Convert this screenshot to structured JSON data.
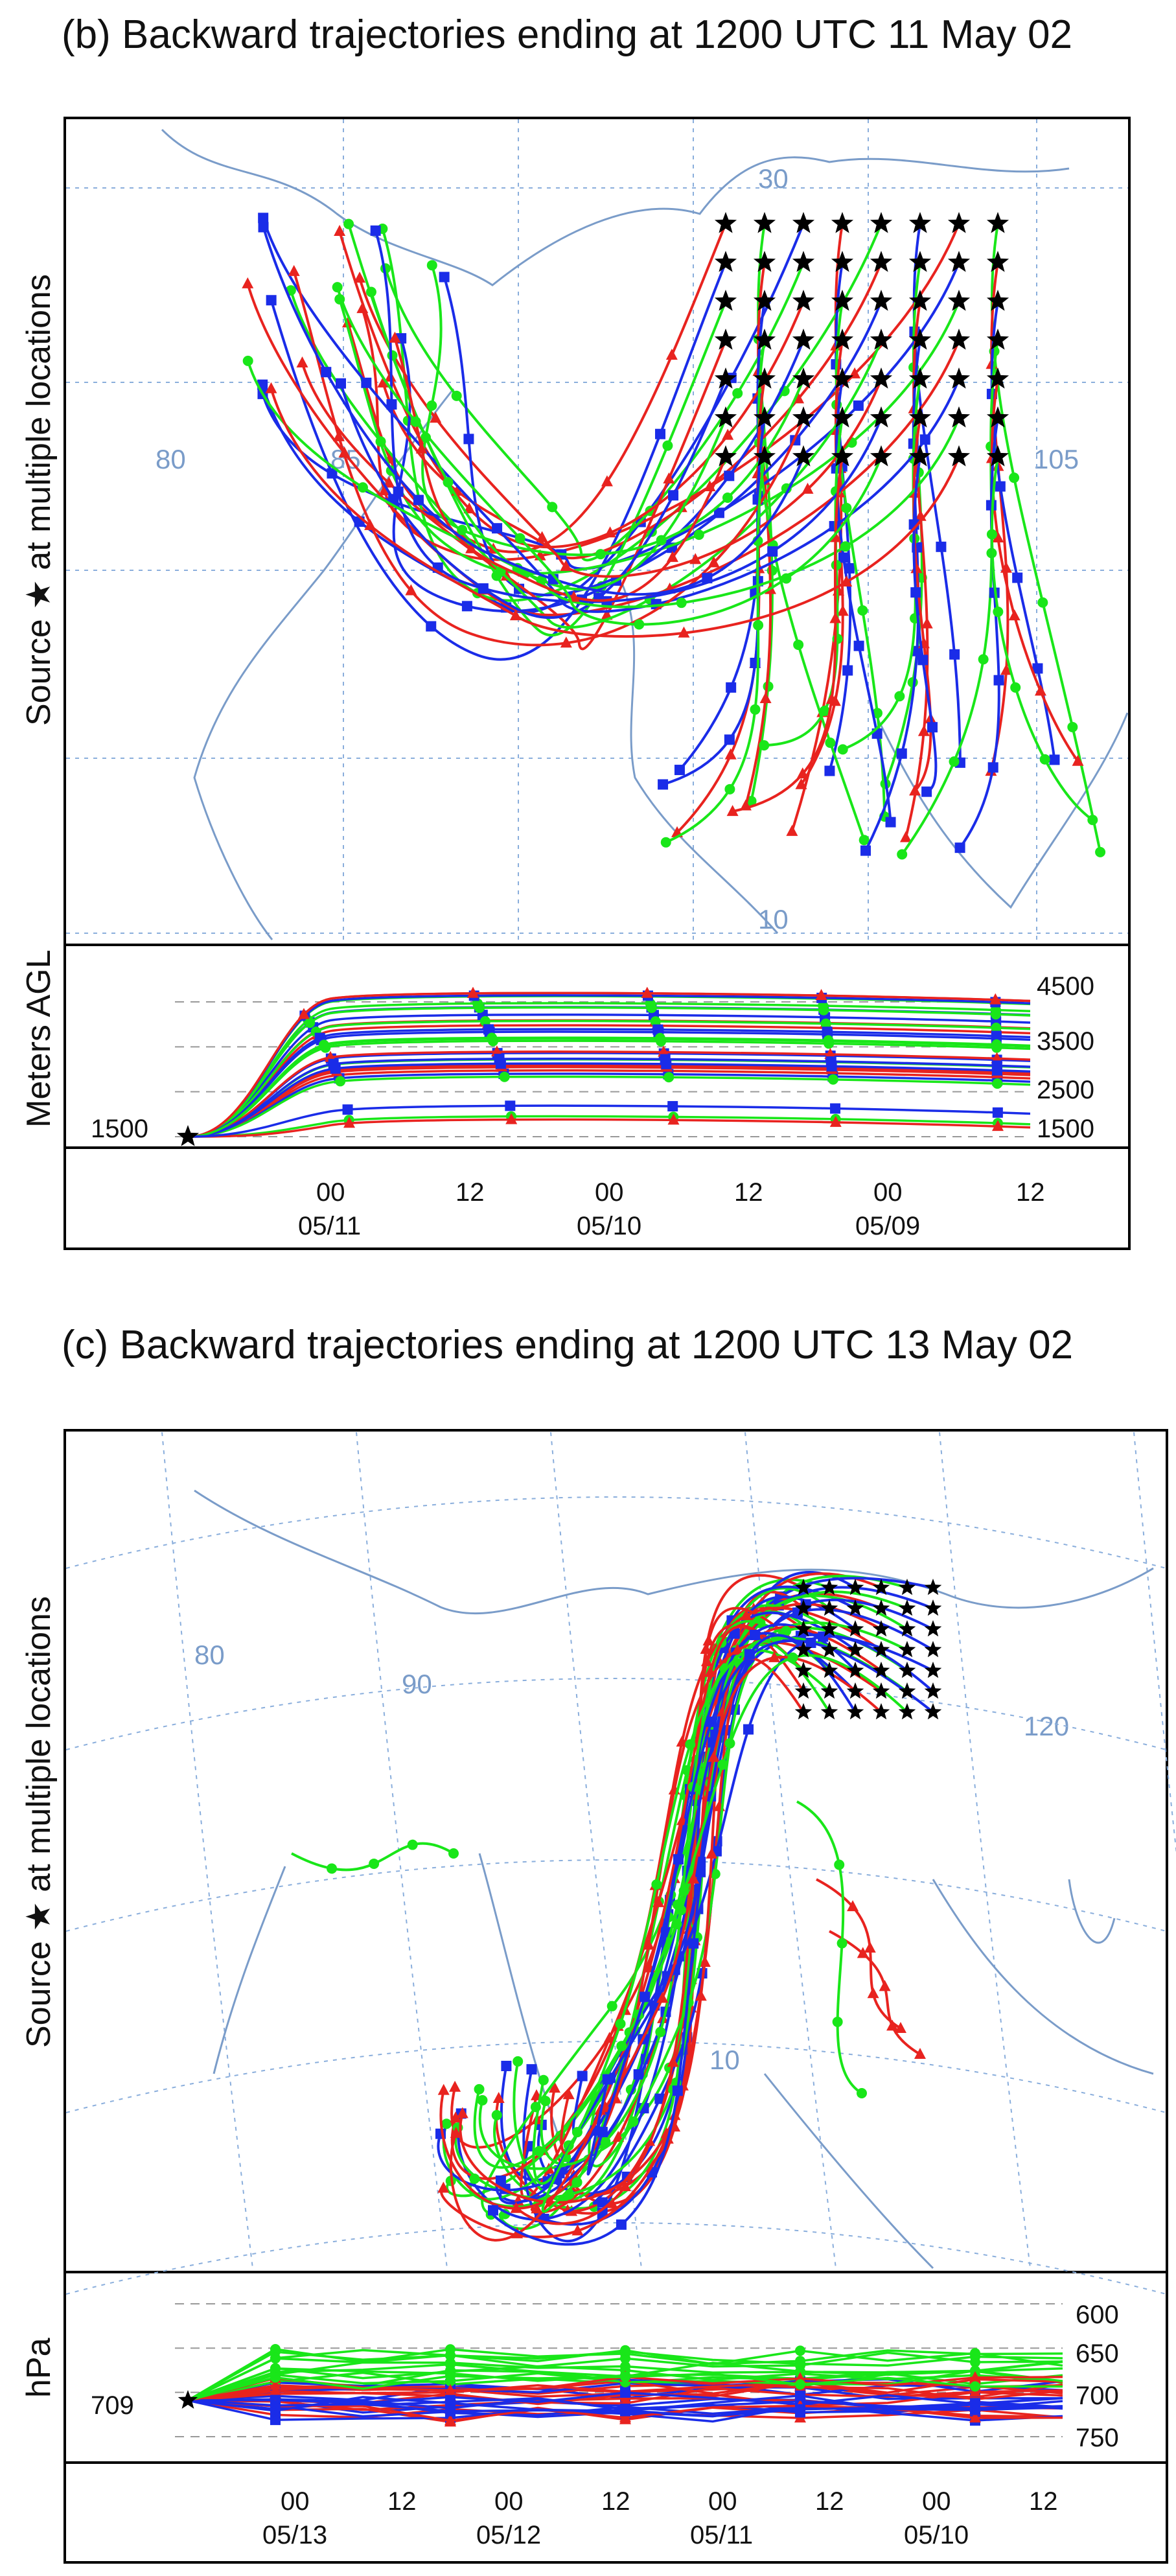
{
  "panel_b": {
    "title": "(b) Backward trajectories ending at 1200 UTC 11 May 02",
    "map_ylabel": "Source ★  at multiple locations",
    "map_labels": {
      "lon1": "80",
      "lon2": "85",
      "lon3": "105",
      "lat1": "30",
      "lat2": "10"
    },
    "height_ylabel": "Meters AGL",
    "start_value": "1500",
    "right_ticks": [
      "4500",
      "3500",
      "2500",
      "1500"
    ],
    "x_ticks": [
      {
        "hour": "00",
        "date": "05/11"
      },
      {
        "hour": "12",
        "date": ""
      },
      {
        "hour": "00",
        "date": "05/10"
      },
      {
        "hour": "12",
        "date": ""
      },
      {
        "hour": "00",
        "date": "05/09"
      },
      {
        "hour": "12",
        "date": ""
      }
    ]
  },
  "panel_c": {
    "title": "(c) Backward trajectories ending at 1200 UTC 13 May 02",
    "map_ylabel": "Source ★  at multiple locations",
    "map_labels": {
      "lon1": "80",
      "lon2": "90",
      "lon3": "120",
      "lat1": "10"
    },
    "pressure_ylabel": "hPa",
    "start_value": "709",
    "right_ticks": [
      "600",
      "650",
      "700",
      "750"
    ],
    "x_ticks": [
      {
        "hour": "00",
        "date": "05/13"
      },
      {
        "hour": "12",
        "date": ""
      },
      {
        "hour": "00",
        "date": "05/12"
      },
      {
        "hour": "12",
        "date": ""
      },
      {
        "hour": "00",
        "date": "05/11"
      },
      {
        "hour": "12",
        "date": ""
      },
      {
        "hour": "00",
        "date": "05/10"
      },
      {
        "hour": "12",
        "date": ""
      }
    ]
  },
  "colors": {
    "red": "#e8231f",
    "green": "#19e619",
    "blue": "#1a2ce8",
    "coast": "#7a9cc9",
    "grid": "#8aaedc"
  },
  "chart_data": [
    {
      "type": "line",
      "title": "(b) Backward trajectories ending at 1200 UTC 11 May 02",
      "ylabel": "Meters AGL",
      "y_ticks": [
        1500,
        2500,
        3500,
        4500
      ],
      "start_value": 1500,
      "x_ticks": [
        "00 05/11",
        "12",
        "00 05/10",
        "12",
        "00 05/09",
        "12"
      ]
    },
    {
      "type": "line",
      "title": "(c) Backward trajectories ending at 1200 UTC 13 May 02",
      "ylabel": "hPa",
      "y_ticks": [
        600,
        650,
        700,
        750
      ],
      "start_value": 709,
      "x_ticks": [
        "00 05/13",
        "12",
        "00 05/12",
        "12",
        "00 05/11",
        "12",
        "00 05/10",
        "12"
      ]
    }
  ]
}
